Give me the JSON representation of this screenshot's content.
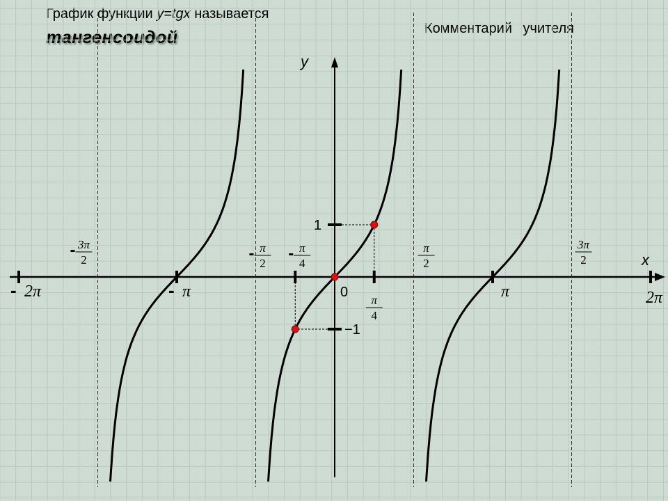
{
  "header": {
    "title_prefix": "График функции ",
    "title_func": "y=tgx",
    "title_suffix": " называется",
    "title_name": "тангенсоидой",
    "comment": "Комментарий учителя"
  },
  "colors": {
    "background": "#cfdcd4",
    "grid": "#b9c9c0",
    "curve": "#000000",
    "point": "#e01010"
  },
  "chart_data": {
    "type": "line",
    "function": "y = tg x",
    "xlabel": "x",
    "ylabel": "y",
    "grid": true,
    "x_unit": "pi",
    "xlim": [
      -2,
      2
    ],
    "ylim": [
      -4,
      4
    ],
    "asymptotes": [
      -1.5,
      -0.5,
      0.5,
      1.5
    ],
    "x_ticks": [
      {
        "value": -2,
        "sign": "-",
        "label": "2π"
      },
      {
        "value": -1.5,
        "sign": "-",
        "num": "3π",
        "den": "2"
      },
      {
        "value": -1,
        "sign": "-",
        "label": "π"
      },
      {
        "value": -0.5,
        "sign": "-",
        "num": "π",
        "den": "2"
      },
      {
        "value": -0.25,
        "sign": "-",
        "num": "π",
        "den": "4"
      },
      {
        "value": 0.25,
        "sign": "",
        "num": "π",
        "den": "4"
      },
      {
        "value": 0.5,
        "sign": "",
        "num": "π",
        "den": "2"
      },
      {
        "value": 1,
        "sign": "",
        "label": "π"
      },
      {
        "value": 1.5,
        "sign": "",
        "num": "3π",
        "den": "2"
      },
      {
        "value": 2,
        "sign": "",
        "label": "2π"
      }
    ],
    "y_ticks": [
      {
        "value": 1,
        "label": "1"
      },
      {
        "value": -1,
        "label": "−1"
      }
    ],
    "origin_label": "0",
    "points": [
      {
        "x": 0,
        "y": 0
      },
      {
        "x": 0.25,
        "y": 1
      },
      {
        "x": -0.25,
        "y": -1
      }
    ]
  }
}
